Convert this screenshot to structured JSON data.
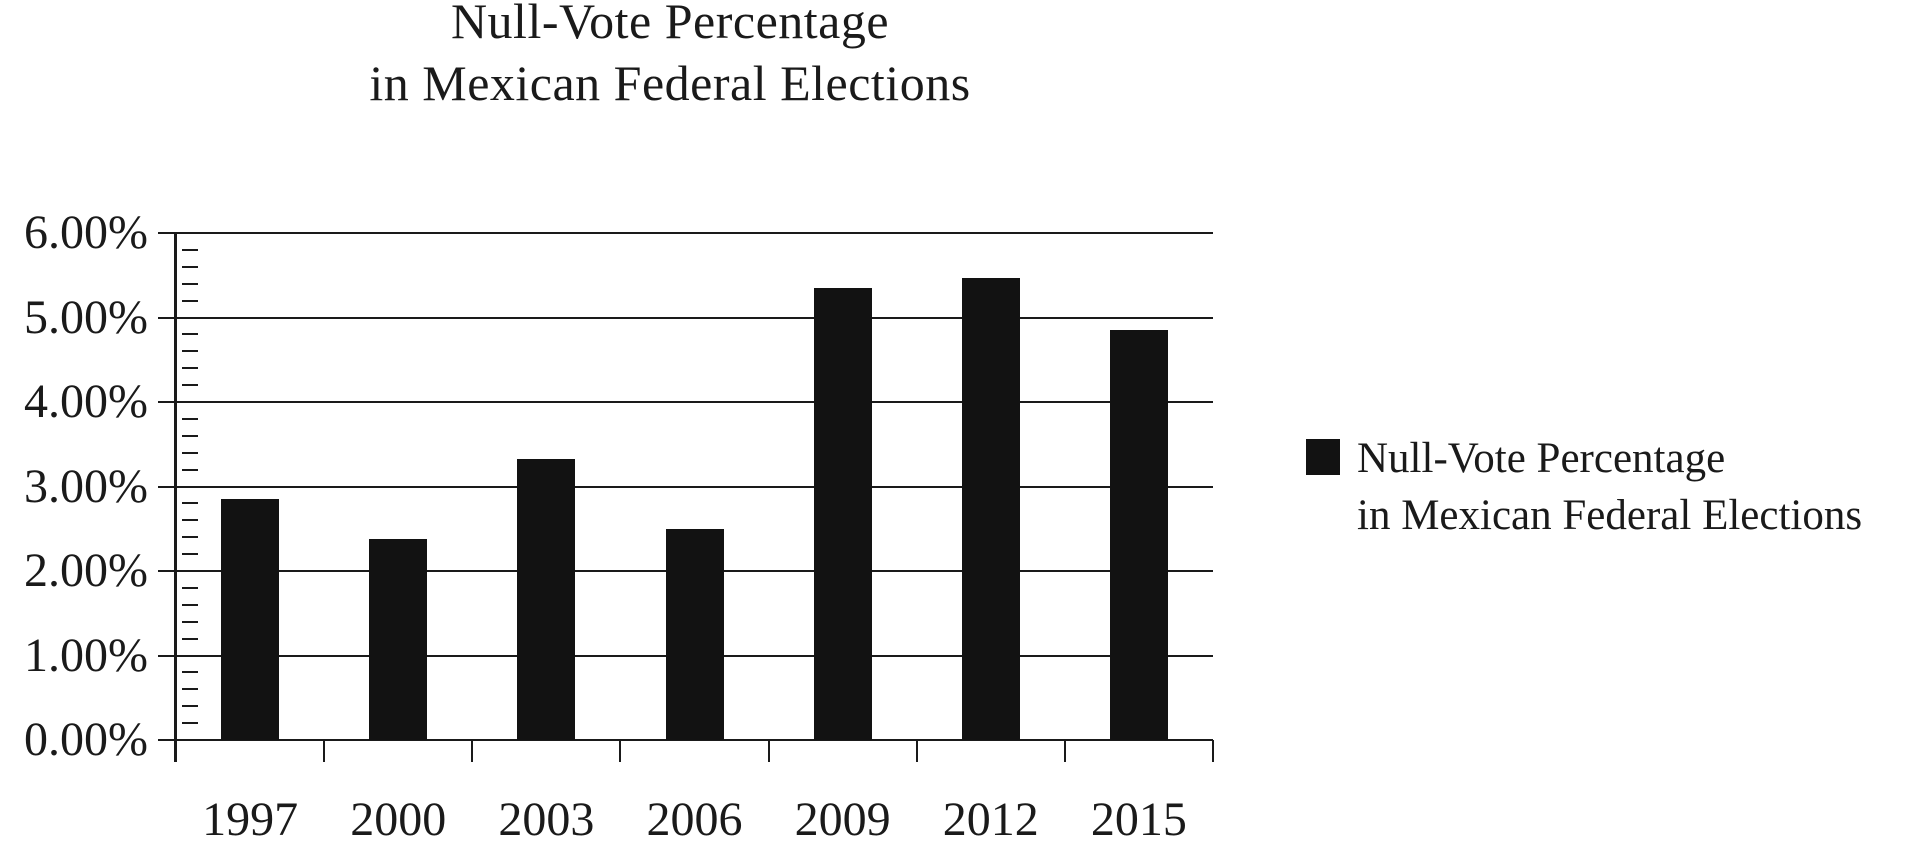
{
  "title": {
    "line1": "Null-Vote Percentage",
    "line2": "in Mexican Federal Elections"
  },
  "legend": {
    "line1": "Null-Vote Percentage",
    "line2": "in Mexican Federal Elections",
    "swatch_color": "#121212"
  },
  "chart_data": {
    "type": "bar",
    "title": "Null-Vote Percentage in Mexican Federal Elections",
    "categories": [
      "1997",
      "2000",
      "2003",
      "2006",
      "2009",
      "2012",
      "2015"
    ],
    "values": [
      2.85,
      2.38,
      3.32,
      2.5,
      5.35,
      5.47,
      4.85
    ],
    "series_name": "Null-Vote Percentage in Mexican Federal Elections",
    "xlabel": "",
    "ylabel": "",
    "ylim": [
      0,
      6
    ],
    "y_major_step": 1.0,
    "y_minor_step": 0.2,
    "y_ticks": [
      "6.00%",
      "5.00%",
      "4.00%",
      "3.00%",
      "2.00%",
      "1.00%",
      "0.00%"
    ],
    "grid": true,
    "legend_position": "right",
    "bar_color": "#121212",
    "line_color": "#1a1a1a",
    "text_color": "#1a1a1a",
    "background_color": "#ffffff"
  }
}
